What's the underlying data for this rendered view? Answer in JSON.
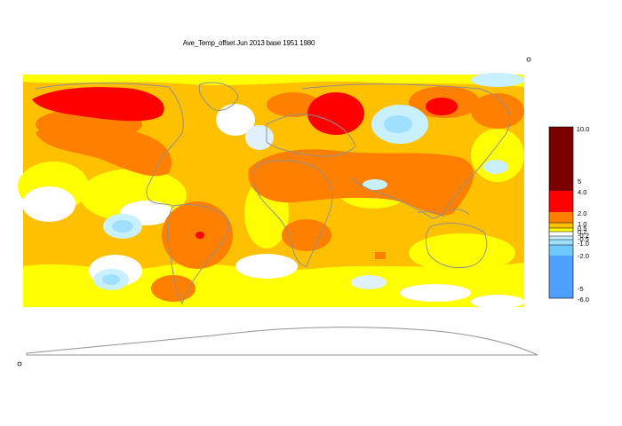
{
  "title": "Ave_Temp_offset Jun 2013  base 1951 1980",
  "colors": {
    "c_gt4": "#7a0000",
    "c_2_4": "#ff0000",
    "c_1_2": "#ff8000",
    "c_05_1": "#ffc000",
    "c_02_05": "#ffff00",
    "c_0_02": "#ffffff",
    "c_m02_0": "#e0f0ff",
    "c_m05_m02": "#a0e0ff",
    "c_m1_m05": "#60c8ff",
    "c_lt_m2": "#4f9fff",
    "land_outline": "#909090"
  },
  "legend": {
    "ticks": [
      "10.0",
      "5",
      "4.0",
      "2.0",
      "1.0",
      "0.5",
      "0.2",
      "-0.2",
      "-0.5",
      "-1.0",
      "-2.0",
      "-5",
      "-6.0"
    ],
    "bands": [
      {
        "from": "4.0",
        "to": "10.0",
        "color": "#7a0000"
      },
      {
        "from": "2.0",
        "to": "4.0",
        "color": "#ff0000"
      },
      {
        "from": "1.0",
        "to": "2.0",
        "color": "#ff8000"
      },
      {
        "from": "0.5",
        "to": "1.0",
        "color": "#ffc000"
      },
      {
        "from": "0.2",
        "to": "0.5",
        "color": "#ffff00"
      },
      {
        "from": "-0.2",
        "to": "0.2",
        "color": "#ffffff"
      },
      {
        "from": "-0.5",
        "to": "-0.2",
        "color": "#c8f0ff"
      },
      {
        "from": "-1.0",
        "to": "-0.5",
        "color": "#a0e0ff"
      },
      {
        "from": "-2.0",
        "to": "-1.0",
        "color": "#70c8ff"
      },
      {
        "from": "-6.0",
        "to": "-2.0",
        "color": "#4f9fff"
      }
    ]
  }
}
